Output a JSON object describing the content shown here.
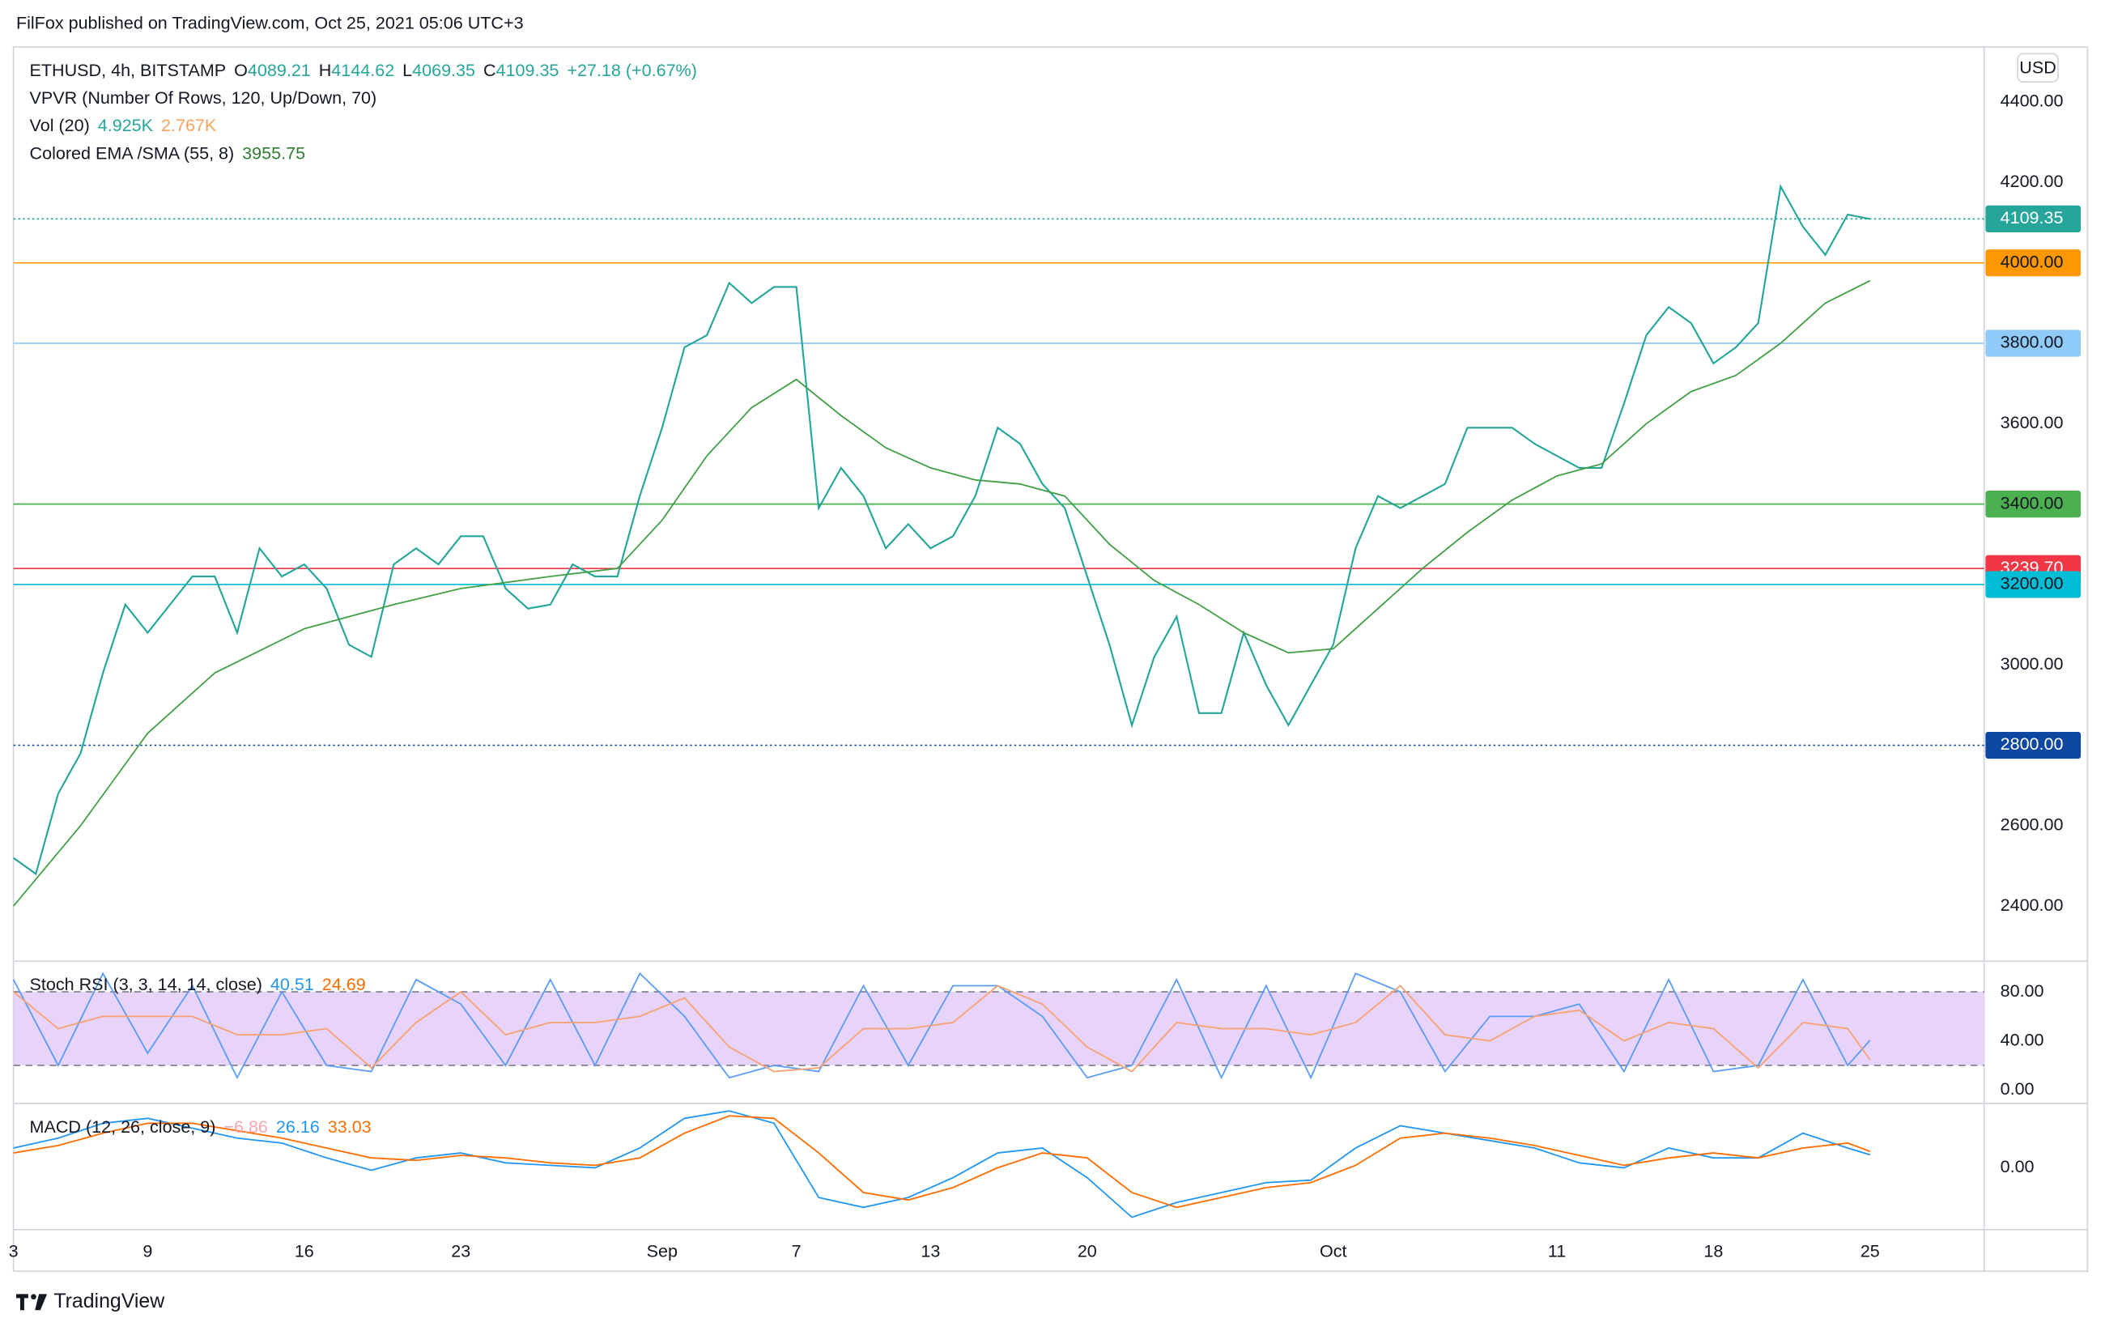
{
  "header": {
    "publisher": "FilFox published on TradingView.com, Oct 25, 2021 05:06 UTC+3",
    "currency": "USD"
  },
  "brand": "TradingView",
  "chart_data": [
    {
      "type": "line",
      "legend": [
        [
          [
            {
              "text": "ETHUSD, 4h, BITSTAMP",
              "color": "#131722"
            }
          ],
          [
            {
              "text": "O",
              "color": "#131722"
            },
            {
              "text": "4089.21",
              "color": "#26a69a"
            }
          ],
          [
            {
              "text": "H",
              "color": "#131722"
            },
            {
              "text": "4144.62",
              "color": "#26a69a"
            }
          ],
          [
            {
              "text": "L",
              "color": "#131722"
            },
            {
              "text": "4069.35",
              "color": "#26a69a"
            }
          ],
          [
            {
              "text": "C",
              "color": "#131722"
            },
            {
              "text": "4109.35",
              "color": "#26a69a"
            }
          ],
          [
            {
              "text": "+27.18 (+0.67%)",
              "color": "#26a69a"
            }
          ]
        ],
        [
          [
            {
              "text": "VPVR (Number Of Rows, 120, Up/Down, 70)",
              "color": "#131722"
            }
          ]
        ],
        [
          [
            {
              "text": "Vol (20)",
              "color": "#131722"
            }
          ],
          [
            {
              "text": "4.925K",
              "color": "#26a69a"
            }
          ],
          [
            {
              "text": "2.767K",
              "color": "#f7a35c"
            }
          ]
        ],
        [
          [
            {
              "text": "Colored EMA /SMA (55, 8)",
              "color": "#131722"
            }
          ],
          [
            {
              "text": "3955.75",
              "color": "#2e7d32"
            }
          ]
        ]
      ],
      "xlim": [
        3,
        91.1
      ],
      "xticks": [
        3,
        9,
        16,
        23,
        {
          "value": 32,
          "label": "Sep"
        },
        {
          "value": 38,
          "label": "7"
        },
        {
          "value": 44,
          "label": "13"
        },
        {
          "value": 51,
          "label": "20"
        },
        {
          "value": 62,
          "label": "Oct"
        },
        {
          "value": 72,
          "label": "11"
        },
        {
          "value": 79,
          "label": "18"
        },
        {
          "value": 86,
          "label": "25"
        }
      ],
      "ylim": [
        2263,
        4537
      ],
      "yticks": [
        {
          "value": 2400,
          "label": "2400.00"
        },
        {
          "value": 2600,
          "label": "2600.00"
        },
        {
          "value": 2800,
          "label": "2800.00"
        },
        {
          "value": 3000,
          "label": "3000.00"
        },
        {
          "value": 3200,
          "label": "3200.00"
        },
        {
          "value": 3400,
          "label": "3400.00"
        },
        {
          "value": 3600,
          "label": "3600.00"
        },
        {
          "value": 3800,
          "label": "3800.00"
        },
        {
          "value": 4000,
          "label": "4000.00"
        },
        {
          "value": 4200,
          "label": "4200.00"
        },
        {
          "value": 4400,
          "label": "4400.00"
        }
      ],
      "x": [
        3,
        4,
        5,
        6,
        7,
        8,
        9,
        10,
        11,
        12,
        13,
        14,
        15,
        16,
        17,
        18,
        19,
        20,
        21,
        22,
        23,
        24,
        25,
        26,
        27,
        28,
        29,
        30,
        31,
        32,
        33,
        34,
        35,
        36,
        37,
        38,
        39,
        40,
        41,
        42,
        43,
        44,
        45,
        46,
        47,
        48,
        49,
        50,
        51,
        52,
        53,
        54,
        55,
        56,
        57,
        58,
        59,
        60,
        61,
        62,
        63,
        64,
        65,
        66,
        67,
        68,
        69,
        70,
        71,
        72,
        73,
        74,
        75,
        76,
        77,
        78,
        79,
        80,
        81,
        82,
        83,
        84,
        85,
        86
      ],
      "series": [
        {
          "color": "#26a69a",
          "values": [
            2520,
            2480,
            2680,
            2780,
            2980,
            3150,
            3080,
            3150,
            3220,
            3220,
            3080,
            3290,
            3220,
            3250,
            3190,
            3050,
            3020,
            3250,
            3290,
            3250,
            3320,
            3320,
            3190,
            3140,
            3150,
            3250,
            3220,
            3220,
            3420,
            3590,
            3790,
            3820,
            3950,
            3900,
            3940,
            3940,
            3390,
            3490,
            3420,
            3290,
            3350,
            3290,
            3320,
            3420,
            3590,
            3550,
            3450,
            3390,
            3220,
            3050,
            2850,
            3020,
            3120,
            2880,
            2880,
            3080,
            2950,
            2850,
            2950,
            3050,
            3290,
            3420,
            3390,
            3420,
            3450,
            3590,
            3590,
            3590,
            3550,
            3520,
            3490,
            3490,
            3650,
            3820,
            3890,
            3850,
            3750,
            3790,
            3850,
            4190,
            4090,
            4020,
            4120,
            4109.35
          ]
        },
        {
          "color": "#43a047",
          "x": [
            3,
            6,
            9,
            12,
            16,
            20,
            23,
            27,
            30,
            32,
            34,
            36,
            38,
            40,
            42,
            44,
            46,
            48,
            50,
            52,
            54,
            56,
            58,
            60,
            62,
            64,
            66,
            68,
            70,
            72,
            74,
            76,
            78,
            80,
            82,
            84,
            86
          ],
          "values": [
            2400,
            2600,
            2830,
            2980,
            3090,
            3150,
            3190,
            3220,
            3240,
            3360,
            3520,
            3640,
            3710,
            3620,
            3540,
            3490,
            3460,
            3450,
            3420,
            3300,
            3210,
            3150,
            3080,
            3030,
            3040,
            3140,
            3240,
            3330,
            3410,
            3470,
            3500,
            3600,
            3680,
            3720,
            3800,
            3900,
            3955.75
          ]
        }
      ],
      "levels": [
        {
          "value": 4109.35,
          "color": "#26a69a",
          "text_color": "#ffffff",
          "dotted": true
        },
        {
          "value": 4000,
          "label": "4000.00",
          "color": "#ff9800",
          "text_color": "#131722",
          "dotted": false
        },
        {
          "value": 3800,
          "label": "3800.00",
          "color": "#90caf9",
          "text_color": "#131722",
          "dotted": false
        },
        {
          "value": 3400,
          "label": "3400.00",
          "color": "#4caf50",
          "text_color": "#131722",
          "dotted": false
        },
        {
          "value": 3239.7,
          "label": "3239.70",
          "color": "#f23645",
          "text_color": "#ffffff",
          "dotted": false
        },
        {
          "value": 3200,
          "label": "3200.00",
          "color": "#00bcd4",
          "text_color": "#131722",
          "dotted": false
        },
        {
          "value": 2800,
          "label": "2800.00",
          "color": "#0d47a1",
          "text_color": "#ffffff",
          "dotted": true
        }
      ]
    },
    {
      "type": "line",
      "legend": [
        [
          [
            {
              "text": "Stoch RSI (3, 3, 14, 14, close)",
              "color": "#131722"
            }
          ],
          [
            {
              "text": "40.51",
              "color": "#2196f3"
            }
          ],
          [
            {
              "text": "24.69",
              "color": "#ff6d00"
            }
          ]
        ]
      ],
      "ylim": [
        -11,
        105
      ],
      "yticks": [
        {
          "value": 0,
          "label": "0.00"
        },
        {
          "value": 40,
          "label": "40.00"
        },
        {
          "value": 80,
          "label": "80.00"
        }
      ],
      "band": {
        "range": [
          20,
          80
        ],
        "color": "#e8d4fa"
      },
      "x": [
        3,
        5,
        7,
        9,
        11,
        13,
        15,
        17,
        19,
        21,
        23,
        25,
        27,
        29,
        31,
        33,
        35,
        37,
        39,
        41,
        43,
        45,
        47,
        49,
        51,
        53,
        55,
        57,
        59,
        61,
        63,
        65,
        67,
        69,
        71,
        73,
        75,
        77,
        79,
        81,
        83,
        85,
        86
      ],
      "series": [
        {
          "color": "#5b9cf6",
          "values": [
            90,
            20,
            95,
            30,
            85,
            10,
            80,
            20,
            15,
            90,
            70,
            20,
            90,
            20,
            95,
            60,
            10,
            20,
            15,
            85,
            20,
            85,
            85,
            60,
            10,
            20,
            90,
            10,
            85,
            10,
            95,
            80,
            15,
            60,
            60,
            70,
            15,
            90,
            15,
            20,
            90,
            20,
            40.51
          ]
        },
        {
          "color": "#f7a173",
          "values": [
            80,
            50,
            60,
            60,
            60,
            45,
            45,
            50,
            18,
            55,
            80,
            45,
            55,
            55,
            60,
            75,
            35,
            15,
            18,
            50,
            50,
            55,
            85,
            70,
            35,
            15,
            55,
            50,
            50,
            45,
            55,
            85,
            45,
            40,
            60,
            65,
            40,
            55,
            50,
            18,
            55,
            50,
            24.69
          ]
        }
      ]
    },
    {
      "type": "line",
      "legend": [
        [
          [
            {
              "text": "MACD (12, 26, close, 9)",
              "color": "#131722"
            }
          ],
          [
            {
              "text": "−6.86",
              "color": "#f8a5b0"
            }
          ],
          [
            {
              "text": "26.16",
              "color": "#2196f3"
            }
          ],
          [
            {
              "text": "33.03",
              "color": "#ff6d00"
            }
          ]
        ]
      ],
      "ylim": [
        -125,
        130
      ],
      "yticks": [
        {
          "value": 0,
          "label": "0.00"
        }
      ],
      "x": [
        3,
        5,
        7,
        9,
        11,
        13,
        15,
        17,
        19,
        21,
        23,
        25,
        27,
        29,
        31,
        33,
        35,
        37,
        39,
        41,
        43,
        45,
        47,
        49,
        51,
        53,
        55,
        57,
        59,
        61,
        63,
        65,
        67,
        69,
        71,
        73,
        75,
        77,
        79,
        81,
        83,
        85,
        86
      ],
      "series": [
        {
          "color": "#2196f3",
          "values": [
            40,
            60,
            90,
            100,
            80,
            60,
            50,
            20,
            -5,
            20,
            30,
            10,
            5,
            0,
            40,
            100,
            115,
            90,
            -60,
            -80,
            -60,
            -20,
            30,
            40,
            -20,
            -100,
            -70,
            -50,
            -30,
            -25,
            40,
            85,
            70,
            55,
            40,
            10,
            0,
            40,
            20,
            20,
            70,
            40,
            26.16
          ]
        },
        {
          "color": "#ff6d00",
          "values": [
            30,
            45,
            70,
            90,
            90,
            75,
            60,
            40,
            20,
            15,
            25,
            20,
            10,
            5,
            20,
            70,
            105,
            100,
            30,
            -50,
            -65,
            -40,
            0,
            30,
            20,
            -50,
            -80,
            -60,
            -40,
            -30,
            5,
            60,
            70,
            60,
            45,
            25,
            5,
            20,
            30,
            20,
            40,
            50,
            33.03
          ]
        }
      ]
    }
  ]
}
